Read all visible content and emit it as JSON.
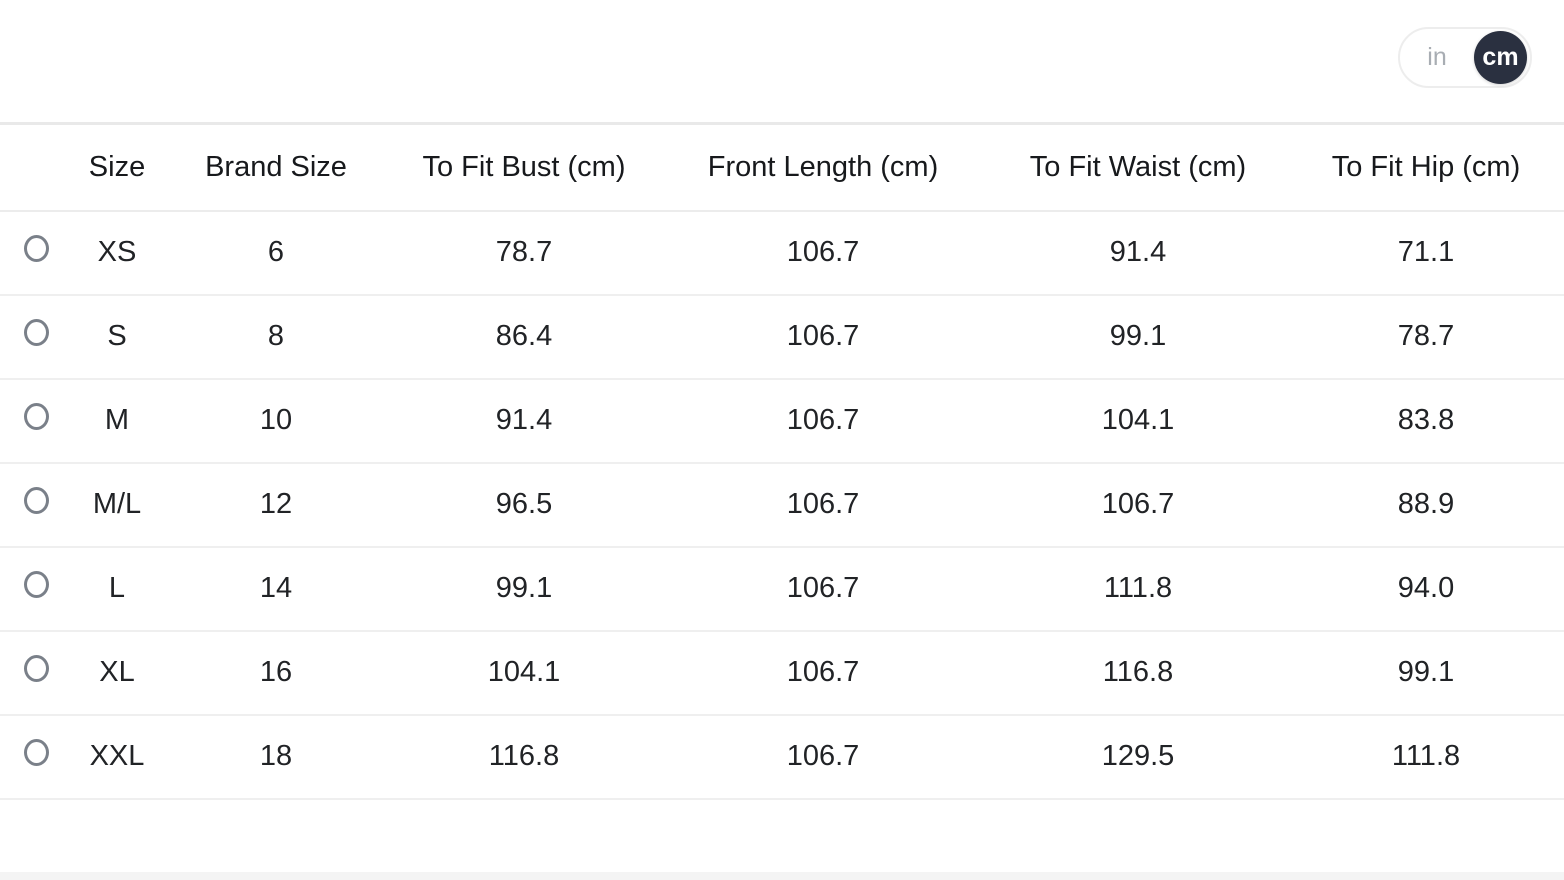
{
  "unit_toggle": {
    "options": [
      {
        "label": "in",
        "selected": false
      },
      {
        "label": "cm",
        "selected": true
      }
    ]
  },
  "table": {
    "columns": [
      "Size",
      "Brand Size",
      "To Fit Bust (cm)",
      "Front Length (cm)",
      "To Fit Waist (cm)",
      "To Fit Hip (cm)"
    ],
    "rows": [
      {
        "size": "XS",
        "brand_size": "6",
        "bust": "78.7",
        "front_length": "106.7",
        "waist": "91.4",
        "hip": "71.1",
        "selected": false
      },
      {
        "size": "S",
        "brand_size": "8",
        "bust": "86.4",
        "front_length": "106.7",
        "waist": "99.1",
        "hip": "78.7",
        "selected": false
      },
      {
        "size": "M",
        "brand_size": "10",
        "bust": "91.4",
        "front_length": "106.7",
        "waist": "104.1",
        "hip": "83.8",
        "selected": false
      },
      {
        "size": "M/L",
        "brand_size": "12",
        "bust": "96.5",
        "front_length": "106.7",
        "waist": "106.7",
        "hip": "88.9",
        "selected": false
      },
      {
        "size": "L",
        "brand_size": "14",
        "bust": "99.1",
        "front_length": "106.7",
        "waist": "111.8",
        "hip": "94.0",
        "selected": false
      },
      {
        "size": "XL",
        "brand_size": "16",
        "bust": "104.1",
        "front_length": "106.7",
        "waist": "116.8",
        "hip": "99.1",
        "selected": false
      },
      {
        "size": "XXL",
        "brand_size": "18",
        "bust": "116.8",
        "front_length": "106.7",
        "waist": "129.5",
        "hip": "111.8",
        "selected": false
      }
    ]
  },
  "colors": {
    "toggle_active_bg": "#2a3040",
    "toggle_active_text": "#ffffff",
    "toggle_inactive_text": "#a8adb3",
    "table_border": "#ececec",
    "radio_border": "#7a8089",
    "text": "#212326"
  }
}
